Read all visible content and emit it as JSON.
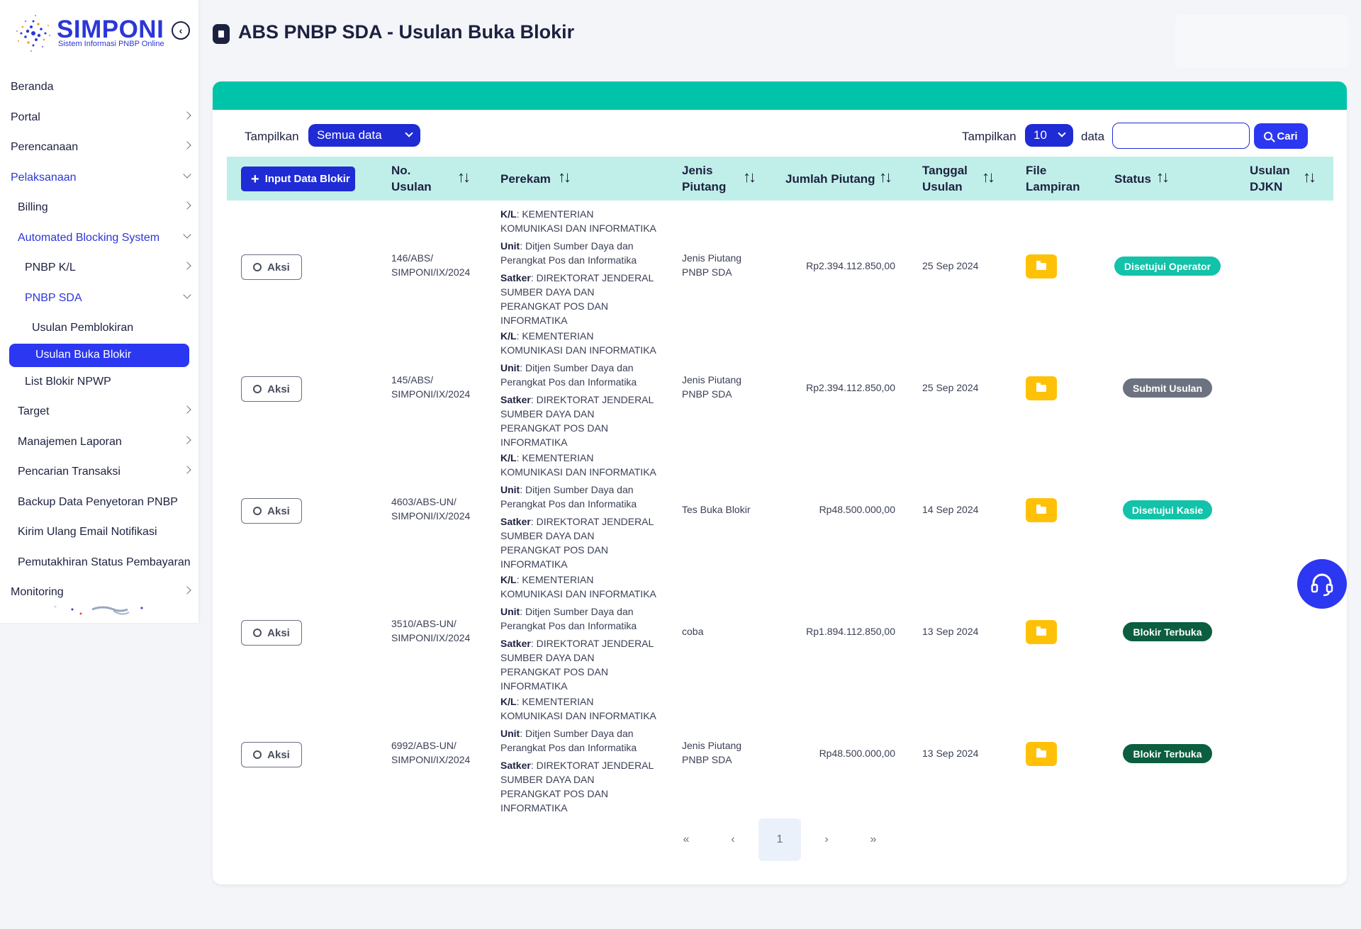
{
  "brand": {
    "name": "SIMPONI",
    "subtitle": "Sistem Informasi PNBP Online"
  },
  "sidebar": {
    "items": [
      {
        "label": "Beranda",
        "level": 0,
        "chevron": "none"
      },
      {
        "label": "Portal",
        "level": 0,
        "chevron": "right"
      },
      {
        "label": "Perencanaan",
        "level": 0,
        "chevron": "right"
      },
      {
        "label": "Pelaksanaan",
        "level": 0,
        "chevron": "down",
        "highlight": true
      },
      {
        "label": "Billing",
        "level": 1,
        "chevron": "right"
      },
      {
        "label": "Automated Blocking System",
        "level": 1,
        "chevron": "down",
        "highlight": true
      },
      {
        "label": "PNBP K/L",
        "level": 2,
        "chevron": "right"
      },
      {
        "label": "PNBP SDA",
        "level": 2,
        "chevron": "down",
        "highlight": true
      },
      {
        "label": "Usulan Pemblokiran",
        "level": 3,
        "chevron": "none"
      },
      {
        "label": "Usulan Buka Blokir",
        "level": 3,
        "chevron": "none",
        "active": true
      },
      {
        "label": "List Blokir NPWP",
        "level": 2,
        "chevron": "none"
      },
      {
        "label": "Target",
        "level": 1,
        "chevron": "right"
      },
      {
        "label": "Manajemen Laporan",
        "level": 1,
        "chevron": "right"
      },
      {
        "label": "Pencarian Transaksi",
        "level": 1,
        "chevron": "right"
      },
      {
        "label": "Backup Data Penyetoran PNBP",
        "level": 1,
        "chevron": "none"
      },
      {
        "label": "Kirim Ulang Email Notifikasi",
        "level": 1,
        "chevron": "none"
      },
      {
        "label": "Pemutakhiran Status Pembayaran",
        "level": 1,
        "chevron": "none"
      },
      {
        "label": "Monitoring",
        "level": 0,
        "chevron": "right"
      }
    ]
  },
  "header": {
    "title": "ABS PNBP SDA - Usulan Buka Blokir"
  },
  "controls": {
    "show_label": "Tampilkan",
    "filter_value": "Semua data",
    "show_label_2": "Tampilkan",
    "page_size": "10",
    "data_label": "data",
    "search_value": "",
    "search_button": "Cari"
  },
  "table": {
    "add_button": "Input Data Blokir",
    "columns": {
      "no_usulan": [
        "No.",
        "Usulan"
      ],
      "perekam": "Perekam",
      "jenis": [
        "Jenis",
        "Piutang"
      ],
      "jumlah": "Jumlah Piutang",
      "tanggal": [
        "Tanggal",
        "Usulan"
      ],
      "file": [
        "File",
        "Lampiran"
      ],
      "status": "Status",
      "djkn": [
        "Usulan",
        "DJKN"
      ]
    },
    "action_label": "Aksi",
    "rows": [
      {
        "no": [
          "146/ABS/",
          "SIMPONI/IX/2024"
        ],
        "kl_label": "K/L",
        "kl": "KEMENTERIAN KOMUNIKASI DAN INFORMATIKA",
        "unit_label": "Unit",
        "unit": "Ditjen Sumber Daya dan Perangkat Pos dan Informatika",
        "satker_label": "Satker",
        "satker": "DIREKTORAT JENDERAL SUMBER DAYA DAN PERANGKAT POS DAN INFORMATIKA",
        "jenis": [
          "Jenis Piutang",
          "PNBP SDA"
        ],
        "jumlah": "Rp2.394.112.850,00",
        "tanggal": "25 Sep 2024",
        "status": "Disetujui Operator",
        "status_color": "#12c2a9"
      },
      {
        "no": [
          "145/ABS/",
          "SIMPONI/IX/2024"
        ],
        "kl_label": "K/L",
        "kl": "KEMENTERIAN KOMUNIKASI DAN INFORMATIKA",
        "unit_label": "Unit",
        "unit": "Ditjen Sumber Daya dan Perangkat Pos dan Informatika",
        "satker_label": "Satker",
        "satker": "DIREKTORAT JENDERAL SUMBER DAYA DAN PERANGKAT POS DAN INFORMATIKA",
        "jenis": [
          "Jenis Piutang",
          "PNBP SDA"
        ],
        "jumlah": "Rp2.394.112.850,00",
        "tanggal": "25 Sep 2024",
        "status": "Submit Usulan",
        "status_color": "#6c727f"
      },
      {
        "no": [
          "4603/ABS-UN/",
          "SIMPONI/IX/2024"
        ],
        "kl_label": "K/L",
        "kl": "KEMENTERIAN KOMUNIKASI DAN INFORMATIKA",
        "unit_label": "Unit",
        "unit": "Ditjen Sumber Daya dan Perangkat Pos dan Informatika",
        "satker_label": "Satker",
        "satker": "DIREKTORAT JENDERAL SUMBER DAYA DAN PERANGKAT POS DAN INFORMATIKA",
        "jenis": [
          "Tes Buka Blokir",
          ""
        ],
        "jumlah": "Rp48.500.000,00",
        "tanggal": "14 Sep 2024",
        "status": "Disetujui Kasie",
        "status_color": "#12c2a9"
      },
      {
        "no": [
          "3510/ABS-UN/",
          "SIMPONI/IX/2024"
        ],
        "kl_label": "K/L",
        "kl": "KEMENTERIAN KOMUNIKASI DAN INFORMATIKA",
        "unit_label": "Unit",
        "unit": "Ditjen Sumber Daya dan Perangkat Pos dan Informatika",
        "satker_label": "Satker",
        "satker": "DIREKTORAT JENDERAL SUMBER DAYA DAN PERANGKAT POS DAN INFORMATIKA",
        "jenis": [
          "coba",
          ""
        ],
        "jumlah": "Rp1.894.112.850,00",
        "tanggal": "13 Sep 2024",
        "status": "Blokir Terbuka",
        "status_color": "#0b5e3f"
      },
      {
        "no": [
          "6992/ABS-UN/",
          "SIMPONI/IX/2024"
        ],
        "kl_label": "K/L",
        "kl": "KEMENTERIAN KOMUNIKASI DAN INFORMATIKA",
        "unit_label": "Unit",
        "unit": "Ditjen Sumber Daya dan Perangkat Pos dan Informatika",
        "satker_label": "Satker",
        "satker": "DIREKTORAT JENDERAL SUMBER DAYA DAN PERANGKAT POS DAN INFORMATIKA",
        "jenis": [
          "Jenis Piutang",
          "PNBP SDA"
        ],
        "jumlah": "Rp48.500.000,00",
        "tanggal": "13 Sep 2024",
        "status": "Blokir Terbuka",
        "status_color": "#0b5e3f"
      }
    ]
  },
  "pagination": {
    "first": "«",
    "prev": "‹",
    "current": "1",
    "next": "›",
    "last": "»"
  },
  "colors": {
    "accent": "#2b37f0",
    "teal": "#00c4aa",
    "header_bg": "#c0efe9",
    "folder": "#ffc107"
  }
}
